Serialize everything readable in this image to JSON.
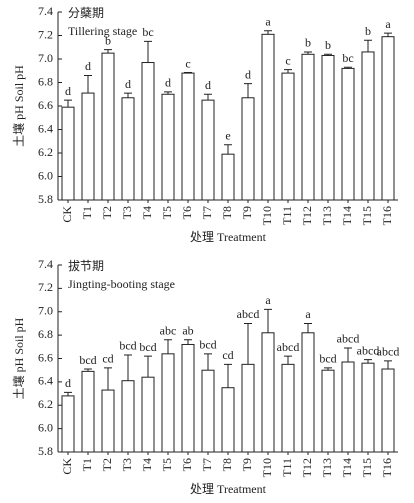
{
  "chart_data": [
    {
      "type": "bar",
      "title": "分蘖期",
      "subtitle": "Tillering stage",
      "y_label": "土壤 pH Soil pH",
      "x_label": "处理 Treatment",
      "categories": [
        "CK",
        "T1",
        "T2",
        "T3",
        "T4",
        "T5",
        "T6",
        "T7",
        "T8",
        "T9",
        "T10",
        "T11",
        "T12",
        "T13",
        "T14",
        "T15",
        "T16"
      ],
      "series": [
        {
          "color": "#ffffff",
          "values": [
            6.59,
            6.71,
            7.05,
            6.67,
            6.97,
            6.7,
            6.88,
            6.65,
            6.19,
            6.67,
            7.21,
            6.88,
            7.04,
            7.03,
            6.92,
            7.06,
            7.19
          ],
          "errors": [
            0.06,
            0.15,
            0.03,
            0.04,
            0.18,
            0.02,
            0.005,
            0.05,
            0.08,
            0.12,
            0.03,
            0.03,
            0.02,
            0.01,
            0.01,
            0.1,
            0.03
          ],
          "letters": [
            "d",
            "d",
            "b",
            "d",
            "bc",
            "d",
            "c",
            "d",
            "e",
            "d",
            "a",
            "c",
            "b",
            "b",
            "bc",
            "b",
            "a"
          ]
        }
      ],
      "ylim": [
        5.8,
        7.4
      ],
      "yticks": [
        {
          "value": 5.8,
          "label": "5.8"
        },
        {
          "value": 6.0,
          "label": "6.0"
        },
        {
          "value": 6.2,
          "label": "6.2"
        },
        {
          "value": 6.4,
          "label": "6.4"
        },
        {
          "value": 6.6,
          "label": "6.6"
        },
        {
          "value": 6.8,
          "label": "6.8"
        },
        {
          "value": 7.0,
          "label": "7.0"
        },
        {
          "value": 7.2,
          "label": "7.2"
        },
        {
          "value": 7.4,
          "label": "7.4"
        }
      ]
    },
    {
      "type": "bar",
      "title": "拔节期",
      "subtitle": "Jingting-booting stage",
      "y_label": "土壤 pH Soil pH",
      "x_label": "处理 Treatment",
      "categories": [
        "CK",
        "T1",
        "T2",
        "T3",
        "T4",
        "T5",
        "T6",
        "T7",
        "T8",
        "T9",
        "T10",
        "T11",
        "T12",
        "T13",
        "T14",
        "T15",
        "T16"
      ],
      "series": [
        {
          "color": "#ffffff",
          "values": [
            6.28,
            6.49,
            6.33,
            6.41,
            6.44,
            6.64,
            6.72,
            6.5,
            6.35,
            6.55,
            6.82,
            6.55,
            6.82,
            6.5,
            6.57,
            6.56,
            6.51
          ],
          "errors": [
            0.03,
            0.02,
            0.19,
            0.22,
            0.18,
            0.12,
            0.04,
            0.14,
            0.2,
            0.35,
            0.2,
            0.07,
            0.08,
            0.02,
            0.12,
            0.03,
            0.07
          ],
          "letters": [
            "d",
            "bcd",
            "cd",
            "bcd",
            "bcd",
            "abc",
            "ab",
            "bcd",
            "cd",
            "abcd",
            "a",
            "abcd",
            "a",
            "bcd",
            "abcd",
            "abcd",
            "abcd"
          ]
        }
      ],
      "ylim": [
        5.8,
        7.4
      ],
      "yticks": [
        {
          "value": 5.8,
          "label": "5.8"
        },
        {
          "value": 6.0,
          "label": "6.0"
        },
        {
          "value": 6.2,
          "label": "6.2"
        },
        {
          "value": 6.4,
          "label": "6.4"
        },
        {
          "value": 6.6,
          "label": "6.6"
        },
        {
          "value": 6.8,
          "label": "6.8"
        },
        {
          "value": 7.0,
          "label": "7.0"
        },
        {
          "value": 7.2,
          "label": "7.2"
        },
        {
          "value": 7.4,
          "label": "7.4"
        }
      ]
    }
  ]
}
